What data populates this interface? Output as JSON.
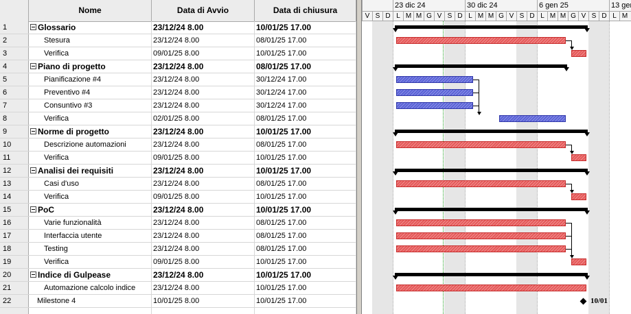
{
  "columns": {
    "num": "",
    "name": "Nome",
    "start": "Data di Avvio",
    "end": "Data di chiusura"
  },
  "weeks": [
    {
      "label": ""
    },
    {
      "label": "23 dic 24"
    },
    {
      "label": "30 dic 24"
    },
    {
      "label": "6 gen 25"
    },
    {
      "label": "13 gen"
    }
  ],
  "day_letters": [
    "V",
    "S",
    "D",
    "L",
    "M",
    "M",
    "G",
    "V",
    "S",
    "D",
    "L",
    "M",
    "M",
    "G",
    "V",
    "S",
    "D",
    "L",
    "M",
    "M",
    "G",
    "V",
    "S",
    "D",
    "L",
    "M"
  ],
  "tasks": [
    {
      "id": "1",
      "name": "Glossario",
      "start": "23/12/24 8.00",
      "end": "10/01/25 17.00",
      "summary": true
    },
    {
      "id": "2",
      "name": "Stesura",
      "start": "23/12/24 8.00",
      "end": "08/01/25 17.00"
    },
    {
      "id": "3",
      "name": "Verifica",
      "start": "09/01/25 8.00",
      "end": "10/01/25 17.00"
    },
    {
      "id": "4",
      "name": "Piano di progetto",
      "start": "23/12/24 8.00",
      "end": "08/01/25 17.00",
      "summary": true
    },
    {
      "id": "5",
      "name": "Pianificazione #4",
      "start": "23/12/24 8.00",
      "end": "30/12/24 17.00"
    },
    {
      "id": "6",
      "name": "Preventivo #4",
      "start": "23/12/24 8.00",
      "end": "30/12/24 17.00"
    },
    {
      "id": "7",
      "name": "Consuntivo #3",
      "start": "23/12/24 8.00",
      "end": "30/12/24 17.00"
    },
    {
      "id": "8",
      "name": "Verifica",
      "start": "02/01/25 8.00",
      "end": "08/01/25 17.00"
    },
    {
      "id": "9",
      "name": "Norme di progetto",
      "start": "23/12/24 8.00",
      "end": "10/01/25 17.00",
      "summary": true
    },
    {
      "id": "10",
      "name": "Descrizione automazioni",
      "start": "23/12/24 8.00",
      "end": "08/01/25 17.00"
    },
    {
      "id": "11",
      "name": "Verifica",
      "start": "09/01/25 8.00",
      "end": "10/01/25 17.00"
    },
    {
      "id": "12",
      "name": "Analisi dei requisiti",
      "start": "23/12/24 8.00",
      "end": "10/01/25 17.00",
      "summary": true
    },
    {
      "id": "13",
      "name": "Casi d'uso",
      "start": "23/12/24 8.00",
      "end": "08/01/25 17.00"
    },
    {
      "id": "14",
      "name": "Verifica",
      "start": "09/01/25 8.00",
      "end": "10/01/25 17.00"
    },
    {
      "id": "15",
      "name": "PoC",
      "start": "23/12/24 8.00",
      "end": "10/01/25 17.00",
      "summary": true
    },
    {
      "id": "16",
      "name": "Varie funzionalità",
      "start": "23/12/24 8.00",
      "end": "08/01/25 17.00"
    },
    {
      "id": "17",
      "name": "Interfaccia utente",
      "start": "23/12/24 8.00",
      "end": "08/01/25 17.00"
    },
    {
      "id": "18",
      "name": "Testing",
      "start": "23/12/24 8.00",
      "end": "08/01/25 17.00"
    },
    {
      "id": "19",
      "name": "Verifica",
      "start": "09/01/25 8.00",
      "end": "10/01/25 17.00"
    },
    {
      "id": "20",
      "name": "Indice di Gulpease",
      "start": "23/12/24 8.00",
      "end": "10/01/25 17.00",
      "summary": true
    },
    {
      "id": "21",
      "name": "Automazione calcolo indice",
      "start": "23/12/24 8.00",
      "end": "10/01/25 17.00"
    },
    {
      "id": "22",
      "name": "Milestone 4",
      "start": "10/01/25 8.00",
      "end": "10/01/25 17.00",
      "milestone": true
    }
  ],
  "milestone_label": "10/01",
  "colors": {
    "task": "#e55a5a",
    "critical": "#5b63d6",
    "summary": "#000000"
  }
}
